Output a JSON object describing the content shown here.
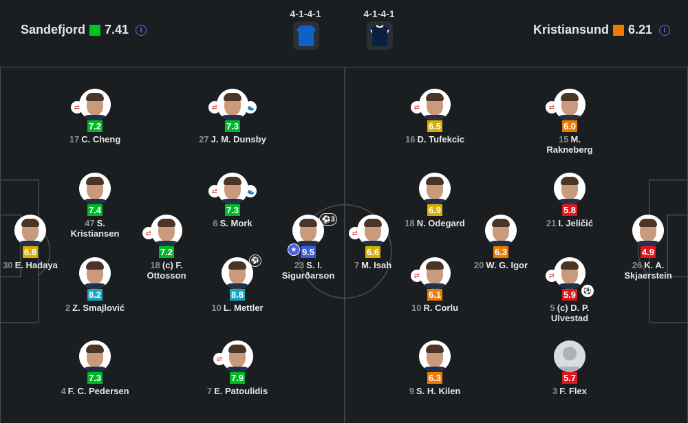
{
  "home": {
    "name": "Sandefjord",
    "rating": "7.41",
    "rating_color": "#00c424",
    "formation": "4-1-4-1",
    "kit_color": "#1160c8"
  },
  "away": {
    "name": "Kristiansund",
    "rating": "6.21",
    "rating_color": "#ef7b00",
    "formation": "4-1-4-1",
    "kit_color": "#0b1f40"
  },
  "rating_colors": {
    "green": "#00b928",
    "yellow": "#d9af00",
    "cyan": "#19a6c4",
    "blue": "#3a5be0",
    "orange": "#ef7b00",
    "red": "#e0161a"
  },
  "players": [
    {
      "number": "17",
      "name": "C. Cheng",
      "rating": "7.2",
      "color": "green",
      "icons": [
        "substitution-icon"
      ]
    },
    {
      "number": "27",
      "name": "J. M. Dunsby",
      "rating": "7.3",
      "color": "green",
      "icons": [
        "substitution-icon",
        "assist-boot-icon"
      ]
    },
    {
      "number": "47",
      "name": "S. Kristiansen",
      "rating": "7.4",
      "color": "green",
      "icons": []
    },
    {
      "number": "6",
      "name": "S. Mork",
      "rating": "7.3",
      "color": "green",
      "icons": [
        "substitution-icon",
        "assist-boot-icon"
      ]
    },
    {
      "number": "30",
      "name": "E. Hadaya",
      "rating": "6.8",
      "color": "yellow",
      "icons": []
    },
    {
      "number": "18",
      "name": "(c) F. Ottosson",
      "rating": "7.2",
      "color": "green",
      "icons": [
        "substitution-icon"
      ]
    },
    {
      "number": "23",
      "name": "S. I. Sigurðarson",
      "rating": "9.5",
      "color": "blue",
      "icons": [
        "player-of-match-star-icon",
        "goals-icon"
      ],
      "goals": "3"
    },
    {
      "number": "2",
      "name": "Z. Smajlović",
      "rating": "8.2",
      "color": "cyan",
      "icons": []
    },
    {
      "number": "10",
      "name": "L. Mettler",
      "rating": "8.8",
      "color": "cyan",
      "icons": [
        "goal-ball-icon"
      ]
    },
    {
      "number": "4",
      "name": "F. C. Pedersen",
      "rating": "7.3",
      "color": "green",
      "icons": []
    },
    {
      "number": "7",
      "name": "E. Patoulidis",
      "rating": "7.9",
      "color": "green",
      "icons": [
        "substitution-icon"
      ]
    },
    {
      "number": "16",
      "name": "D. Tufekcic",
      "rating": "6.5",
      "color": "yellow",
      "icons": [
        "substitution-icon"
      ]
    },
    {
      "number": "15",
      "name": "M. Rakneberg",
      "rating": "6.0",
      "color": "orange",
      "icons": [
        "substitution-icon"
      ]
    },
    {
      "number": "18",
      "name": "N. Odegard",
      "rating": "6.9",
      "color": "yellow",
      "icons": []
    },
    {
      "number": "21",
      "name": "I. Jeličić",
      "rating": "5.8",
      "color": "red",
      "icons": []
    },
    {
      "number": "7",
      "name": "M. Isah",
      "rating": "6.6",
      "color": "yellow",
      "icons": [
        "substitution-icon"
      ]
    },
    {
      "number": "20",
      "name": "W. G. Igor",
      "rating": "6.3",
      "color": "orange",
      "icons": []
    },
    {
      "number": "26",
      "name": "K. A. Skjaerstein",
      "rating": "4.9",
      "color": "red",
      "icons": []
    },
    {
      "number": "10",
      "name": "R. Corlu",
      "rating": "6.1",
      "color": "orange",
      "icons": [
        "substitution-icon"
      ]
    },
    {
      "number": "5",
      "name": "(c) D. P. Ulvestad",
      "rating": "5.9",
      "color": "red",
      "icons": [
        "substitution-icon",
        "own-goal-icon"
      ]
    },
    {
      "number": "9",
      "name": "S. H. Kilen",
      "rating": "6.3",
      "color": "orange",
      "icons": []
    },
    {
      "number": "3",
      "name": "F. Flex",
      "rating": "5.7",
      "color": "red",
      "icons": [],
      "no_photo": true
    }
  ]
}
